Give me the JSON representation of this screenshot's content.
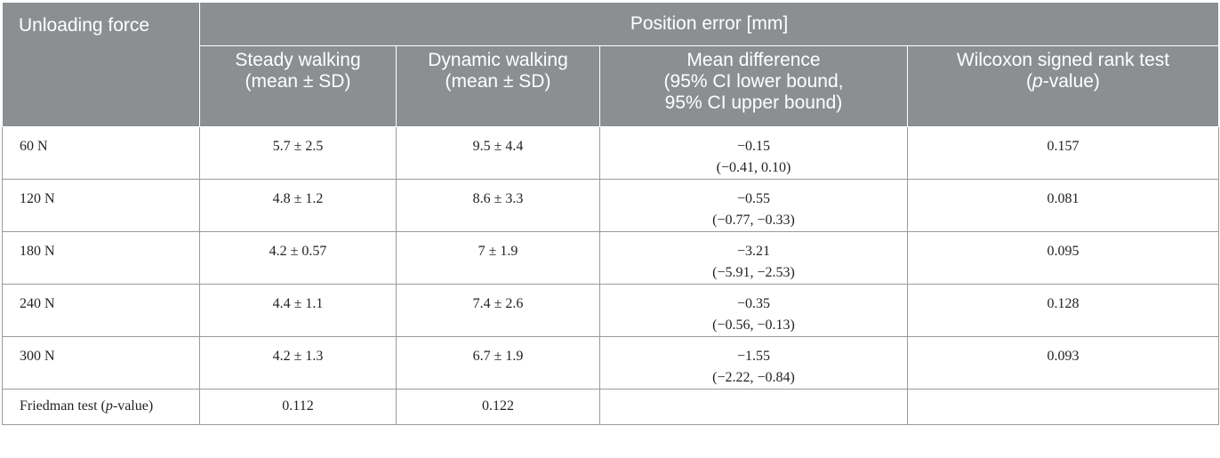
{
  "table": {
    "corner_header": "Unloading force",
    "group_header": "Position error [mm]",
    "column_headers": [
      {
        "line1": "Steady walking",
        "line2": "(mean ± SD)",
        "line3": ""
      },
      {
        "line1": "Dynamic walking",
        "line2": "(mean ± SD)",
        "line3": ""
      },
      {
        "line1": "Mean difference",
        "line2": "(95% CI lower bound,",
        "line3": "95% CI upper bound)"
      },
      {
        "line1": "Wilcoxon signed rank test",
        "line2_prefix": "(",
        "line2_italic": "p",
        "line2_suffix": "-value)",
        "line3": ""
      }
    ],
    "rows": [
      {
        "label": "60 N",
        "steady": "5.7 ± 2.5",
        "dynamic": "9.5 ± 4.4",
        "diff": "−0.15",
        "ci": "(−0.41, 0.10)",
        "wilcoxon": "0.157"
      },
      {
        "label": "120 N",
        "steady": "4.8 ± 1.2",
        "dynamic": "8.6 ± 3.3",
        "diff": "−0.55",
        "ci": "(−0.77, −0.33)",
        "wilcoxon": "0.081"
      },
      {
        "label": "180 N",
        "steady": "4.2 ± 0.57",
        "dynamic": "7 ± 1.9",
        "diff": "−3.21",
        "ci": "(−5.91, −2.53)",
        "wilcoxon": "0.095"
      },
      {
        "label": "240 N",
        "steady": "4.4 ± 1.1",
        "dynamic": "7.4 ± 2.6",
        "diff": "−0.35",
        "ci": "(−0.56, −0.13)",
        "wilcoxon": "0.128"
      },
      {
        "label": "300 N",
        "steady": "4.2 ± 1.3",
        "dynamic": "6.7 ± 1.9",
        "diff": "−1.55",
        "ci": "(−2.22, −0.84)",
        "wilcoxon": "0.093"
      }
    ],
    "footer": {
      "label_prefix": "Friedman test (",
      "label_italic": "p",
      "label_suffix": "-value)",
      "steady": "0.112",
      "dynamic": "0.122",
      "diff": "",
      "wilcoxon": ""
    },
    "colors": {
      "header_bg": "#8c8f91",
      "header_text": "#ffffff",
      "grid": "#9a9a9a"
    }
  }
}
